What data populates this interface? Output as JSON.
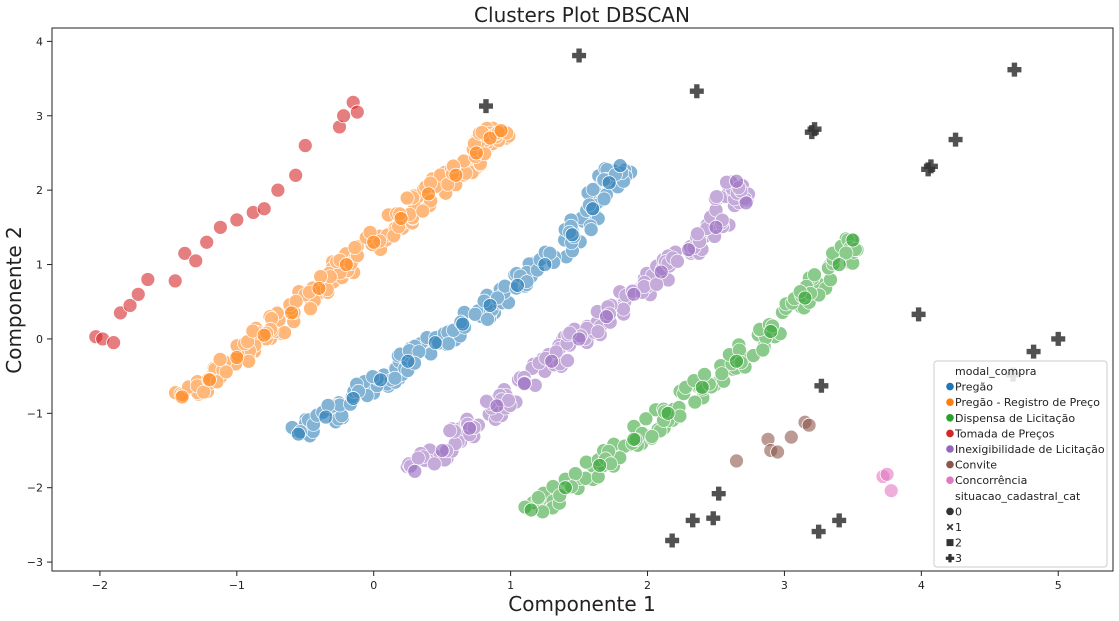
{
  "chart_data": {
    "type": "scatter",
    "title": "Clusters  Plot DBSCAN",
    "xlabel": "Componente 1",
    "ylabel": "Componente 2",
    "xlim": [
      -2.35,
      5.4
    ],
    "ylim": [
      -3.12,
      4.18
    ],
    "xticks": [
      -2,
      -1,
      0,
      1,
      2,
      3,
      4,
      5
    ],
    "yticks": [
      -3,
      -2,
      -1,
      0,
      1,
      2,
      3,
      4
    ],
    "grid": false,
    "legend_position": "bottom-right",
    "legend": {
      "hue_title": "modal_compra",
      "style_title": "situacao_cadastral_cat",
      "hue_entries": [
        {
          "label": "Pregão",
          "color": "#1f77b4"
        },
        {
          "label": "Pregão - Registro de Preço",
          "color": "#ff7f0e"
        },
        {
          "label": "Dispensa de Licitação",
          "color": "#2ca02c"
        },
        {
          "label": "Tomada de Preços",
          "color": "#d62728"
        },
        {
          "label": "Inexigibilidade de Licitação",
          "color": "#9467bd"
        },
        {
          "label": "Convite",
          "color": "#8c564b"
        },
        {
          "label": "Concorrência",
          "color": "#e377c2"
        }
      ],
      "style_entries": [
        {
          "label": "0",
          "marker": "circle"
        },
        {
          "label": "1",
          "marker": "x"
        },
        {
          "label": "2",
          "marker": "square"
        },
        {
          "label": "3",
          "marker": "plus"
        }
      ]
    },
    "series": [
      {
        "name": "Pregão",
        "color": "#1f77b4",
        "x": [
          -0.55,
          -0.35,
          -0.15,
          0.05,
          0.25,
          0.45,
          0.65,
          0.85,
          1.05,
          1.25,
          1.45,
          1.6,
          1.72,
          1.8
        ],
        "y": [
          -1.28,
          -1.05,
          -0.8,
          -0.55,
          -0.3,
          -0.05,
          0.2,
          0.45,
          0.72,
          1.0,
          1.4,
          1.75,
          2.1,
          2.33
        ]
      },
      {
        "name": "Pregão - Registro de Preço",
        "color": "#ff7f0e",
        "x": [
          -1.4,
          -1.2,
          -1.0,
          -0.8,
          -0.6,
          -0.4,
          -0.2,
          0.0,
          0.2,
          0.4,
          0.6,
          0.75,
          0.85,
          0.93
        ],
        "y": [
          -0.78,
          -0.55,
          -0.25,
          0.05,
          0.35,
          0.68,
          1.0,
          1.3,
          1.62,
          1.95,
          2.2,
          2.5,
          2.7,
          2.8
        ]
      },
      {
        "name": "Dispensa de Licitação",
        "color": "#2ca02c",
        "x": [
          1.15,
          1.4,
          1.65,
          1.9,
          2.15,
          2.4,
          2.65,
          2.9,
          3.15,
          3.4,
          3.5
        ],
        "y": [
          -2.3,
          -2.0,
          -1.7,
          -1.35,
          -1.0,
          -0.65,
          -0.3,
          0.1,
          0.55,
          1.0,
          1.33
        ]
      },
      {
        "name": "Tomada de Preços",
        "color": "#d62728",
        "x": [
          -2.03,
          -1.98,
          -1.9,
          -1.85,
          -1.78,
          -1.72,
          -1.65,
          -1.45,
          -1.38,
          -1.3,
          -1.22,
          -1.12,
          -1.0,
          -0.88,
          -0.8,
          -0.7,
          -0.57,
          -0.5,
          -0.25,
          -0.22,
          -0.15,
          -0.12
        ],
        "y": [
          0.03,
          0.0,
          -0.05,
          0.35,
          0.45,
          0.6,
          0.8,
          0.78,
          1.15,
          1.05,
          1.3,
          1.5,
          1.6,
          1.7,
          1.75,
          2.0,
          2.2,
          2.6,
          2.85,
          3.0,
          3.18,
          3.05
        ]
      },
      {
        "name": "Inexigibilidade de Licitação",
        "color": "#9467bd",
        "x": [
          0.3,
          0.5,
          0.7,
          0.9,
          1.1,
          1.3,
          1.5,
          1.7,
          1.9,
          2.1,
          2.3,
          2.5,
          2.65,
          2.72
        ],
        "y": [
          -1.78,
          -1.5,
          -1.2,
          -0.9,
          -0.6,
          -0.3,
          0.0,
          0.3,
          0.6,
          0.9,
          1.2,
          1.5,
          2.12,
          1.83
        ]
      },
      {
        "name": "Convite",
        "color": "#8c564b",
        "x": [
          2.65,
          2.88,
          2.9,
          2.95,
          3.05,
          3.15,
          3.18
        ],
        "y": [
          -1.64,
          -1.35,
          -1.5,
          -1.52,
          -1.32,
          -1.12,
          -1.16
        ]
      },
      {
        "name": "Concorrência",
        "color": "#e377c2",
        "x": [
          3.72,
          3.75,
          3.78
        ],
        "y": [
          -1.85,
          -1.82,
          -2.04
        ]
      },
      {
        "name": "3",
        "color": "#333333",
        "x": [
          1.5,
          0.82,
          2.36,
          3.22,
          3.2,
          4.05,
          4.07,
          4.25,
          4.68,
          3.98,
          4.82,
          5.0,
          4.67,
          3.27,
          2.18,
          2.33,
          2.48,
          2.52,
          3.25,
          3.4
        ],
        "y": [
          3.81,
          3.13,
          3.33,
          2.82,
          2.78,
          2.28,
          2.32,
          2.68,
          3.62,
          0.33,
          -0.17,
          0.0,
          -0.48,
          -0.63,
          -2.71,
          -2.44,
          -2.41,
          -2.08,
          -2.59,
          -2.44
        ]
      }
    ]
  }
}
